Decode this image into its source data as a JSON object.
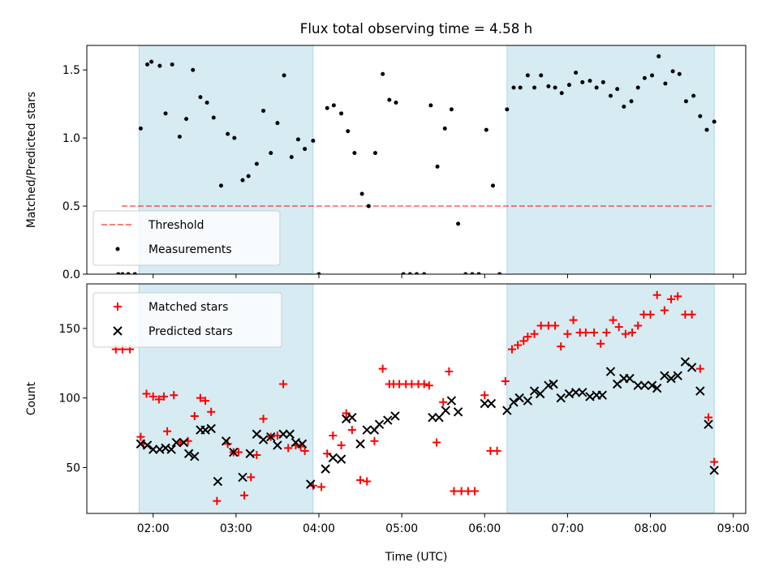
{
  "chart_data": [
    {
      "type": "scatter",
      "title": "Flux total observing time = 4.58 h",
      "ylabel": "Matched/Predicted stars",
      "xlim": [
        1.2,
        9.15
      ],
      "ylim": [
        0,
        1.68
      ],
      "yticks": [
        0.0,
        0.5,
        1.0,
        1.5
      ],
      "ytick_labels": [
        "0.0",
        "0.5",
        "1.0",
        "1.5"
      ],
      "shaded_intervals": [
        [
          1.83,
          3.93
        ],
        [
          6.27,
          8.77
        ]
      ],
      "shade_color": "#add8e6",
      "legend": {
        "position": "lower-left",
        "entries": [
          {
            "label": "Threshold",
            "style": "dashed-line",
            "color": "#ff0000"
          },
          {
            "label": "Measurements",
            "style": "dot",
            "color": "#000000"
          }
        ]
      },
      "threshold": {
        "name": "Threshold",
        "y": 0.5,
        "x_range": [
          1.62,
          8.77
        ],
        "color": "#ff0000",
        "alpha": 0.5
      },
      "series": [
        {
          "name": "Measurements",
          "color": "#000000",
          "points": [
            [
              1.58,
              0.0
            ],
            [
              1.63,
              0.0
            ],
            [
              1.7,
              0.0
            ],
            [
              1.78,
              0.0
            ],
            [
              1.85,
              1.07
            ],
            [
              1.93,
              1.54
            ],
            [
              1.98,
              1.56
            ],
            [
              2.08,
              1.53
            ],
            [
              2.15,
              1.18
            ],
            [
              2.23,
              1.54
            ],
            [
              2.32,
              1.01
            ],
            [
              2.4,
              1.14
            ],
            [
              2.48,
              1.5
            ],
            [
              2.57,
              1.3
            ],
            [
              2.65,
              1.26
            ],
            [
              2.73,
              1.15
            ],
            [
              2.82,
              0.65
            ],
            [
              2.9,
              1.03
            ],
            [
              2.98,
              1.0
            ],
            [
              3.08,
              0.69
            ],
            [
              3.15,
              0.72
            ],
            [
              3.25,
              0.81
            ],
            [
              3.33,
              1.2
            ],
            [
              3.42,
              0.89
            ],
            [
              3.5,
              1.11
            ],
            [
              3.58,
              1.46
            ],
            [
              3.67,
              0.86
            ],
            [
              3.75,
              0.99
            ],
            [
              3.83,
              0.92
            ],
            [
              3.93,
              0.98
            ],
            [
              4.0,
              0.0
            ],
            [
              4.1,
              1.22
            ],
            [
              4.18,
              1.24
            ],
            [
              4.27,
              1.18
            ],
            [
              4.35,
              1.05
            ],
            [
              4.43,
              0.89
            ],
            [
              4.52,
              0.59
            ],
            [
              4.6,
              0.5
            ],
            [
              4.68,
              0.89
            ],
            [
              4.77,
              1.47
            ],
            [
              4.85,
              1.28
            ],
            [
              4.93,
              1.26
            ],
            [
              5.02,
              0.0
            ],
            [
              5.1,
              0.0
            ],
            [
              5.18,
              0.0
            ],
            [
              5.27,
              0.0
            ],
            [
              5.35,
              1.24
            ],
            [
              5.43,
              0.79
            ],
            [
              5.52,
              1.07
            ],
            [
              5.6,
              1.21
            ],
            [
              5.68,
              0.37
            ],
            [
              5.77,
              0.0
            ],
            [
              5.85,
              0.0
            ],
            [
              5.93,
              0.0
            ],
            [
              6.02,
              1.06
            ],
            [
              6.1,
              0.65
            ],
            [
              6.18,
              0.0
            ],
            [
              6.27,
              1.21
            ],
            [
              6.35,
              1.37
            ],
            [
              6.43,
              1.37
            ],
            [
              6.52,
              1.46
            ],
            [
              6.6,
              1.37
            ],
            [
              6.68,
              1.46
            ],
            [
              6.77,
              1.38
            ],
            [
              6.85,
              1.37
            ],
            [
              6.93,
              1.33
            ],
            [
              7.02,
              1.39
            ],
            [
              7.1,
              1.48
            ],
            [
              7.18,
              1.41
            ],
            [
              7.27,
              1.42
            ],
            [
              7.35,
              1.37
            ],
            [
              7.43,
              1.41
            ],
            [
              7.52,
              1.31
            ],
            [
              7.6,
              1.36
            ],
            [
              7.68,
              1.23
            ],
            [
              7.77,
              1.27
            ],
            [
              7.85,
              1.37
            ],
            [
              7.93,
              1.44
            ],
            [
              8.02,
              1.46
            ],
            [
              8.1,
              1.6
            ],
            [
              8.18,
              1.4
            ],
            [
              8.27,
              1.49
            ],
            [
              8.35,
              1.47
            ],
            [
              8.43,
              1.27
            ],
            [
              8.52,
              1.31
            ],
            [
              8.6,
              1.16
            ],
            [
              8.68,
              1.06
            ],
            [
              8.77,
              1.12
            ]
          ]
        }
      ]
    },
    {
      "type": "scatter",
      "xlabel": "Time (UTC)",
      "ylabel": "Count",
      "xlim": [
        1.2,
        9.15
      ],
      "ylim": [
        17,
        182
      ],
      "xticks": [
        2,
        3,
        4,
        5,
        6,
        7,
        8,
        9
      ],
      "xtick_labels": [
        "02:00",
        "03:00",
        "04:00",
        "05:00",
        "06:00",
        "07:00",
        "08:00",
        "09:00"
      ],
      "yticks": [
        50,
        100,
        150
      ],
      "ytick_labels": [
        "50",
        "100",
        "150"
      ],
      "shaded_intervals": [
        [
          1.83,
          3.93
        ],
        [
          6.27,
          8.77
        ]
      ],
      "shade_color": "#add8e6",
      "legend": {
        "position": "upper-left",
        "entries": [
          {
            "label": "Matched stars",
            "style": "plus",
            "color": "#ff0000"
          },
          {
            "label": "Predicted stars",
            "style": "x",
            "color": "#000000"
          }
        ]
      },
      "series": [
        {
          "name": "Matched stars",
          "color": "#ff0000",
          "marker": "plus",
          "points": [
            [
              1.55,
              135
            ],
            [
              1.63,
              135
            ],
            [
              1.72,
              135
            ],
            [
              1.85,
              72
            ],
            [
              1.88,
              67
            ],
            [
              1.92,
              103
            ],
            [
              2.0,
              101
            ],
            [
              2.07,
              99
            ],
            [
              2.13,
              101
            ],
            [
              2.17,
              76
            ],
            [
              2.25,
              102
            ],
            [
              2.33,
              68
            ],
            [
              2.42,
              69
            ],
            [
              2.5,
              87
            ],
            [
              2.57,
              100
            ],
            [
              2.63,
              98
            ],
            [
              2.7,
              90
            ],
            [
              2.77,
              26
            ],
            [
              2.9,
              67
            ],
            [
              2.97,
              61
            ],
            [
              3.03,
              61
            ],
            [
              3.1,
              30
            ],
            [
              3.18,
              43
            ],
            [
              3.25,
              59
            ],
            [
              3.33,
              85
            ],
            [
              3.42,
              72
            ],
            [
              3.5,
              73
            ],
            [
              3.57,
              110
            ],
            [
              3.63,
              64
            ],
            [
              3.72,
              66
            ],
            [
              3.78,
              65
            ],
            [
              3.83,
              62
            ],
            [
              3.93,
              37
            ],
            [
              4.03,
              36
            ],
            [
              4.1,
              60
            ],
            [
              4.17,
              73
            ],
            [
              4.27,
              66
            ],
            [
              4.33,
              89
            ],
            [
              4.4,
              77
            ],
            [
              4.5,
              41
            ],
            [
              4.58,
              40
            ],
            [
              4.67,
              69
            ],
            [
              4.77,
              121
            ],
            [
              4.85,
              110
            ],
            [
              4.9,
              110
            ],
            [
              4.97,
              110
            ],
            [
              5.05,
              110
            ],
            [
              5.12,
              110
            ],
            [
              5.2,
              110
            ],
            [
              5.27,
              110
            ],
            [
              5.33,
              109
            ],
            [
              5.42,
              68
            ],
            [
              5.5,
              97
            ],
            [
              5.57,
              119
            ],
            [
              5.63,
              33
            ],
            [
              5.72,
              33
            ],
            [
              5.8,
              33
            ],
            [
              5.88,
              33
            ],
            [
              6.0,
              102
            ],
            [
              6.07,
              62
            ],
            [
              6.15,
              62
            ],
            [
              6.25,
              112
            ],
            [
              6.33,
              135
            ],
            [
              6.4,
              138
            ],
            [
              6.47,
              141
            ],
            [
              6.52,
              144
            ],
            [
              6.6,
              146
            ],
            [
              6.68,
              152
            ],
            [
              6.77,
              152
            ],
            [
              6.85,
              152
            ],
            [
              6.92,
              137
            ],
            [
              7.0,
              146
            ],
            [
              7.07,
              156
            ],
            [
              7.15,
              147
            ],
            [
              7.22,
              147
            ],
            [
              7.32,
              147
            ],
            [
              7.4,
              139
            ],
            [
              7.47,
              147
            ],
            [
              7.55,
              156
            ],
            [
              7.62,
              151
            ],
            [
              7.7,
              146
            ],
            [
              7.78,
              147
            ],
            [
              7.85,
              152
            ],
            [
              7.92,
              160
            ],
            [
              8.0,
              160
            ],
            [
              8.08,
              174
            ],
            [
              8.17,
              163
            ],
            [
              8.25,
              171
            ],
            [
              8.33,
              173
            ],
            [
              8.42,
              160
            ],
            [
              8.5,
              160
            ],
            [
              8.6,
              121
            ],
            [
              8.7,
              86
            ],
            [
              8.77,
              54
            ]
          ]
        },
        {
          "name": "Predicted stars",
          "color": "#000000",
          "marker": "x",
          "points": [
            [
              1.85,
              67
            ],
            [
              1.93,
              66
            ],
            [
              2.0,
              63
            ],
            [
              2.08,
              63
            ],
            [
              2.15,
              64
            ],
            [
              2.22,
              63
            ],
            [
              2.28,
              68
            ],
            [
              2.37,
              68
            ],
            [
              2.43,
              60
            ],
            [
              2.5,
              58
            ],
            [
              2.57,
              77
            ],
            [
              2.63,
              77
            ],
            [
              2.7,
              78
            ],
            [
              2.78,
              40
            ],
            [
              2.88,
              69
            ],
            [
              2.97,
              61
            ],
            [
              3.08,
              43
            ],
            [
              3.17,
              60
            ],
            [
              3.25,
              74
            ],
            [
              3.33,
              70
            ],
            [
              3.42,
              72
            ],
            [
              3.5,
              66
            ],
            [
              3.57,
              74
            ],
            [
              3.65,
              74
            ],
            [
              3.72,
              68
            ],
            [
              3.8,
              67
            ],
            [
              3.9,
              38
            ],
            [
              4.08,
              49
            ],
            [
              4.17,
              57
            ],
            [
              4.27,
              56
            ],
            [
              4.33,
              85
            ],
            [
              4.4,
              86
            ],
            [
              4.5,
              67
            ],
            [
              4.58,
              77
            ],
            [
              4.67,
              77
            ],
            [
              4.73,
              81
            ],
            [
              4.83,
              84
            ],
            [
              4.92,
              87
            ],
            [
              5.37,
              86
            ],
            [
              5.45,
              86
            ],
            [
              5.53,
              91
            ],
            [
              5.6,
              98
            ],
            [
              5.68,
              90
            ],
            [
              6.0,
              96
            ],
            [
              6.08,
              96
            ],
            [
              6.27,
              91
            ],
            [
              6.35,
              97
            ],
            [
              6.42,
              100
            ],
            [
              6.52,
              98
            ],
            [
              6.6,
              105
            ],
            [
              6.67,
              103
            ],
            [
              6.77,
              109
            ],
            [
              6.83,
              110
            ],
            [
              6.92,
              100
            ],
            [
              7.02,
              103
            ],
            [
              7.1,
              104
            ],
            [
              7.18,
              104
            ],
            [
              7.27,
              101
            ],
            [
              7.35,
              102
            ],
            [
              7.42,
              102
            ],
            [
              7.52,
              119
            ],
            [
              7.6,
              110
            ],
            [
              7.68,
              114
            ],
            [
              7.75,
              114
            ],
            [
              7.85,
              109
            ],
            [
              7.93,
              109
            ],
            [
              8.02,
              109
            ],
            [
              8.08,
              107
            ],
            [
              8.17,
              116
            ],
            [
              8.25,
              114
            ],
            [
              8.33,
              116
            ],
            [
              8.42,
              126
            ],
            [
              8.5,
              122
            ],
            [
              8.6,
              105
            ],
            [
              8.7,
              81
            ],
            [
              8.77,
              48
            ]
          ]
        }
      ]
    }
  ]
}
